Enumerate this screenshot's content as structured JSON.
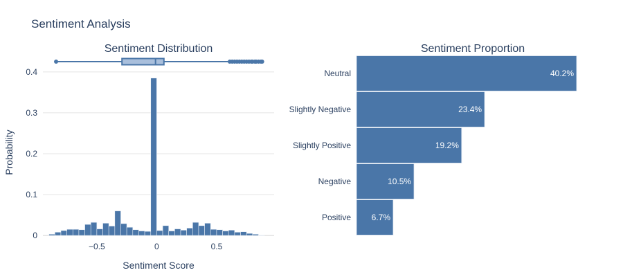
{
  "page_title": "Sentiment Analysis",
  "colors": {
    "bar": "#4a76a8",
    "bar_edge": "#e8eef6",
    "box_fill": "#a9bfdc",
    "text": "#2a3f5f"
  },
  "chart_data": [
    {
      "type": "histogram",
      "title": "Sentiment Distribution",
      "xlabel": "Sentiment Score",
      "ylabel": "Probability",
      "xlim": [
        -0.95,
        0.98
      ],
      "ylim": [
        0,
        0.41
      ],
      "x_ticks": [
        -0.5,
        0,
        0.5
      ],
      "x_tick_labels": [
        "−0.5",
        "0",
        "0.5"
      ],
      "y_ticks": [
        0,
        0.1,
        0.2,
        0.3,
        0.4
      ],
      "y_tick_labels": [
        "0",
        "0.1",
        "0.2",
        "0.3",
        "0.4"
      ],
      "grid": true,
      "bin_width": 0.05,
      "bin_starts": [
        -0.9,
        -0.85,
        -0.8,
        -0.75,
        -0.7,
        -0.65,
        -0.6,
        -0.55,
        -0.5,
        -0.45,
        -0.4,
        -0.35,
        -0.3,
        -0.25,
        -0.2,
        -0.15,
        -0.1,
        -0.05,
        0.0,
        0.05,
        0.1,
        0.15,
        0.2,
        0.25,
        0.3,
        0.35,
        0.4,
        0.45,
        0.5,
        0.55,
        0.6,
        0.65,
        0.7,
        0.75,
        0.8,
        0.85
      ],
      "values": [
        0.003,
        0.008,
        0.012,
        0.015,
        0.015,
        0.014,
        0.027,
        0.032,
        0.016,
        0.03,
        0.023,
        0.06,
        0.029,
        0.02,
        0.014,
        0.011,
        0.01,
        0.385,
        0.012,
        0.024,
        0.011,
        0.016,
        0.013,
        0.018,
        0.032,
        0.024,
        0.03,
        0.015,
        0.014,
        0.011,
        0.013,
        0.008,
        0.009,
        0.005,
        0.003,
        0.001
      ],
      "box": {
        "min": -0.84,
        "q1": -0.29,
        "median": -0.01,
        "q3": 0.06,
        "upper_fence": 0.6,
        "outliers": [
          0.61,
          0.63,
          0.65,
          0.67,
          0.69,
          0.71,
          0.73,
          0.75,
          0.77,
          0.79,
          0.8,
          0.82,
          0.83,
          0.85,
          0.87,
          0.88
        ]
      }
    },
    {
      "type": "bar",
      "orientation": "horizontal",
      "title": "Sentiment Proportion",
      "categories": [
        "Neutral",
        "Slightly Negative",
        "Slightly Positive",
        "Negative",
        "Positive"
      ],
      "values": [
        40.2,
        23.4,
        19.2,
        10.5,
        6.7
      ],
      "labels": [
        "40.2%",
        "23.4%",
        "19.2%",
        "10.5%",
        "6.7%"
      ],
      "xlim": [
        0,
        40.2
      ]
    }
  ]
}
